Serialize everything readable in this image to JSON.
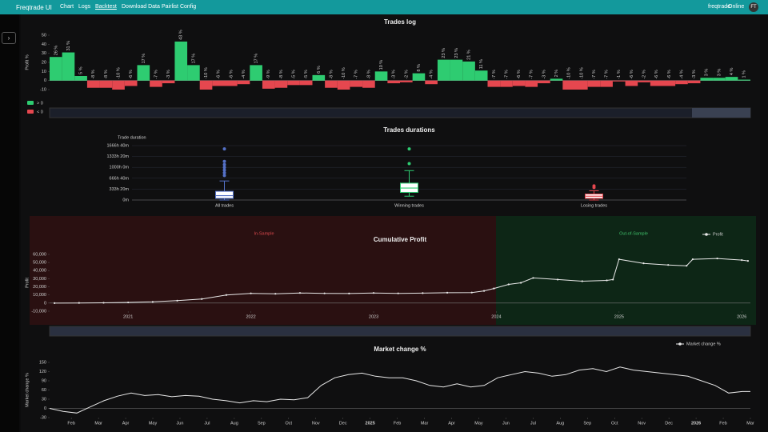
{
  "nav": {
    "brand": "Freqtrade UI",
    "links": [
      "Chart",
      "Logs",
      "Backtest",
      "Download Data",
      "Pairlist Config"
    ],
    "bot": "freqtrade",
    "status": "Online",
    "avatar": "FT"
  },
  "chart_data": [
    {
      "type": "bar",
      "title": "Trades log",
      "y_label": "Profit %",
      "values": [
        26,
        31,
        5,
        -8,
        -8,
        -10,
        -6,
        17,
        -7,
        -3,
        43,
        17,
        -10,
        -6,
        -6,
        -4,
        17,
        -9,
        -8,
        -5,
        -5,
        6,
        -8,
        -10,
        -7,
        -8,
        10,
        -3,
        -2,
        8,
        -4,
        23,
        23,
        21,
        11,
        -7,
        -7,
        -6,
        -7,
        -3,
        2,
        -10,
        -10,
        -7,
        -7,
        -1,
        -6,
        -2,
        -6,
        -6,
        -4,
        -3,
        3,
        3,
        4,
        1
      ],
      "value_labels": [
        "26 %",
        "31 %",
        "5 %",
        "-8 %",
        "-8 %",
        "-10 %",
        "-6 %",
        "17 %",
        "-7 %",
        "-3 %",
        "43 %",
        "17 %",
        "-10 %",
        "-6 %",
        "-6 %",
        "-4 %",
        "17 %",
        "-9 %",
        "-8 %",
        "-5 %",
        "-5 %",
        "6 %",
        "-8 %",
        "-10 %",
        "-7 %",
        "-8 %",
        "10 %",
        "-3 %",
        "-2 %",
        "8 %",
        "-4 %",
        "23 %",
        "23 %",
        "21 %",
        "11 %",
        "-7 %",
        "-7 %",
        "-6 %",
        "-7 %",
        "-3 %",
        "2 %",
        "-10 %",
        "-10 %",
        "-7 %",
        "-7 %",
        "-1 %",
        "-6 %",
        "-2 %",
        "-6 %",
        "-6 %",
        "-4 %",
        "-3 %",
        "3 %",
        "3 %",
        "4 %",
        "1 %"
      ],
      "legend": [
        {
          "name": "> 0",
          "color": "#2ecc71"
        },
        {
          "name": "< 0",
          "color": "#e5474f"
        }
      ],
      "ylim": [
        -10,
        50
      ],
      "yticks": [
        -10,
        0,
        10,
        20,
        30,
        40,
        50
      ],
      "grid": false
    },
    {
      "type": "box",
      "title": "Trades durations",
      "y_label": "Trade duration",
      "categories": [
        "All trades",
        "Winning trades",
        "Losing trades"
      ],
      "colors": [
        "#5470c6",
        "#2ecc71",
        "#e5474f"
      ],
      "min": [
        0,
        7000,
        0
      ],
      "q1": [
        3000,
        14000,
        3000
      ],
      "median": [
        8000,
        22000,
        7000
      ],
      "q3": [
        16000,
        31000,
        11000
      ],
      "max": [
        35000,
        54000,
        17000
      ],
      "outliers": [
        [
          45000,
          50000,
          55000,
          60000,
          65000,
          71000,
          94000
        ],
        [
          67000,
          94000
        ],
        [
          23000,
          26000
        ]
      ],
      "ylim": [
        0,
        100000
      ],
      "yticks": [
        {
          "value": 0,
          "label": "0m"
        },
        {
          "value": 20000,
          "label": "333h 20m"
        },
        {
          "value": 40000,
          "label": "666h 40m"
        },
        {
          "value": 60000,
          "label": "1000h 0m"
        },
        {
          "value": 80000,
          "label": "1333h 20m"
        },
        {
          "value": 100000,
          "label": "1666h 40m"
        }
      ],
      "grid": true
    },
    {
      "type": "line",
      "title": "Cumulative Profit",
      "y_label": "Profit",
      "annotations": [
        "In-Sample",
        "Out-of-Sample"
      ],
      "x": [
        2020.4,
        2020.6,
        2020.8,
        2021.0,
        2021.2,
        2021.4,
        2021.6,
        2021.8,
        2022.0,
        2022.2,
        2022.4,
        2022.6,
        2022.8,
        2023.0,
        2023.2,
        2023.4,
        2023.6,
        2023.8,
        2023.9,
        2023.98,
        2024.1,
        2024.2,
        2024.3,
        2024.5,
        2024.7,
        2024.9,
        2024.95,
        2025.0,
        2025.2,
        2025.4,
        2025.55,
        2025.6,
        2025.8,
        2026.0,
        2026.05
      ],
      "series": [
        {
          "name": "Profit",
          "color": "#e8e8e8",
          "values": [
            0,
            200,
            400,
            800,
            1500,
            3000,
            5000,
            10000,
            12000,
            11500,
            12500,
            12000,
            11800,
            12500,
            12000,
            12300,
            12800,
            13000,
            15000,
            18000,
            23000,
            25000,
            31000,
            29000,
            27000,
            28000,
            29000,
            54000,
            49000,
            47000,
            46000,
            54000,
            55000,
            53000,
            52000
          ]
        }
      ],
      "xlim": [
        2020.36,
        2026.07
      ],
      "xticks": [
        2021,
        2022,
        2023,
        2024,
        2025,
        2026
      ],
      "ylim": [
        -10000,
        60000
      ],
      "yticks": [
        {
          "value": -10000,
          "label": "-10,000"
        },
        {
          "value": 0,
          "label": "0"
        },
        {
          "value": 10000,
          "label": "10,000"
        },
        {
          "value": 20000,
          "label": "20,000"
        },
        {
          "value": 30000,
          "label": "30,000"
        },
        {
          "value": 40000,
          "label": "40,000"
        },
        {
          "value": 50000,
          "label": "50,000"
        },
        {
          "value": 60000,
          "label": "60,000"
        }
      ],
      "grid": false,
      "legend": "top-right"
    },
    {
      "type": "line",
      "title": "Market change %",
      "y_label": "Market change %",
      "x": [
        0.2,
        0.7,
        1.2,
        1.7,
        2.2,
        2.7,
        3.2,
        3.7,
        4.2,
        4.7,
        5.2,
        5.7,
        6.2,
        6.7,
        7.2,
        7.7,
        8.2,
        8.7,
        9.2,
        9.7,
        10.2,
        10.7,
        11.2,
        11.7,
        12.2,
        12.7,
        13.2,
        13.7,
        14.2,
        14.7,
        15.2,
        15.7,
        16.2,
        16.7,
        17.2,
        17.7,
        18.2,
        18.7,
        19.2,
        19.7,
        20.2,
        20.7,
        21.2,
        21.7,
        22.2,
        22.7,
        23.2,
        23.7,
        24.2,
        24.7,
        25.2,
        25.7,
        26.0
      ],
      "series": [
        {
          "name": "Market change %",
          "color": "#e8e8e8",
          "values": [
            0,
            -10,
            -15,
            5,
            25,
            40,
            50,
            42,
            45,
            38,
            42,
            40,
            30,
            25,
            18,
            25,
            22,
            30,
            28,
            35,
            75,
            100,
            110,
            115,
            105,
            100,
            100,
            90,
            75,
            70,
            80,
            70,
            75,
            100,
            110,
            120,
            115,
            105,
            110,
            125,
            130,
            120,
            135,
            125,
            120,
            115,
            110,
            105,
            90,
            75,
            50,
            55,
            55
          ]
        }
      ],
      "xlim": [
        0.2,
        26.0
      ],
      "xticks": [
        {
          "value": 1,
          "label": "Feb"
        },
        {
          "value": 2,
          "label": "Mar"
        },
        {
          "value": 3,
          "label": "Apr"
        },
        {
          "value": 4,
          "label": "May"
        },
        {
          "value": 5,
          "label": "Jun"
        },
        {
          "value": 6,
          "label": "Jul"
        },
        {
          "value": 7,
          "label": "Aug"
        },
        {
          "value": 8,
          "label": "Sep"
        },
        {
          "value": 9,
          "label": "Oct"
        },
        {
          "value": 10,
          "label": "Nov"
        },
        {
          "value": 11,
          "label": "Dec"
        },
        {
          "value": 12,
          "label": "2025"
        },
        {
          "value": 13,
          "label": "Feb"
        },
        {
          "value": 14,
          "label": "Mar"
        },
        {
          "value": 15,
          "label": "Apr"
        },
        {
          "value": 16,
          "label": "May"
        },
        {
          "value": 17,
          "label": "Jun"
        },
        {
          "value": 18,
          "label": "Jul"
        },
        {
          "value": 19,
          "label": "Aug"
        },
        {
          "value": 20,
          "label": "Sep"
        },
        {
          "value": 21,
          "label": "Oct"
        },
        {
          "value": 22,
          "label": "Nov"
        },
        {
          "value": 23,
          "label": "Dec"
        },
        {
          "value": 24,
          "label": "2026"
        },
        {
          "value": 25,
          "label": "Feb"
        },
        {
          "value": 26,
          "label": "Mar"
        }
      ],
      "ylim": [
        -30,
        150
      ],
      "yticks": [
        -30,
        0,
        30,
        60,
        90,
        120,
        150
      ],
      "grid": false,
      "legend": "top-right"
    }
  ]
}
